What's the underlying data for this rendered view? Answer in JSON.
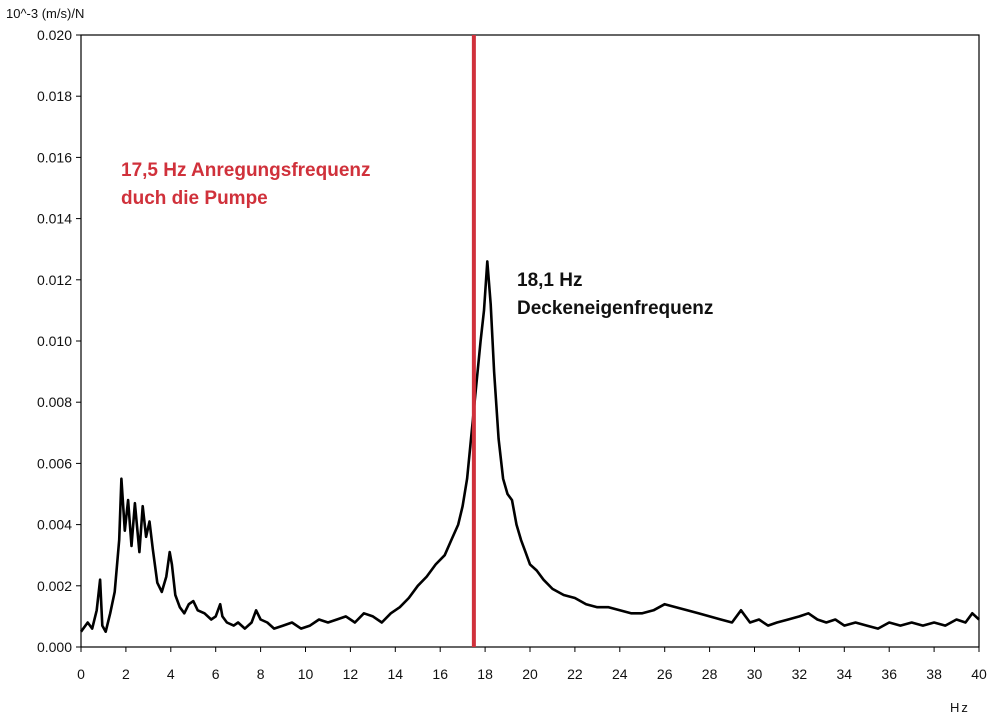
{
  "chart_data": {
    "type": "line",
    "xlabel": "Hz",
    "ylabel": "10^-3 (m/s)/N",
    "xlim": [
      0,
      40
    ],
    "ylim": [
      0,
      0.02
    ],
    "x_ticks": [
      "0",
      "2",
      "4",
      "6",
      "8",
      "10",
      "12",
      "14",
      "16",
      "18",
      "20",
      "22",
      "24",
      "26",
      "28",
      "30",
      "32",
      "34",
      "36",
      "38",
      "40"
    ],
    "y_ticks": [
      "0.000",
      "0.002",
      "0.004",
      "0.006",
      "0.008",
      "0.010",
      "0.012",
      "0.014",
      "0.016",
      "0.018",
      "0.020"
    ],
    "grid": false,
    "series": [
      {
        "color": "#000000",
        "x": [
          0,
          0.3,
          0.5,
          0.7,
          0.85,
          0.95,
          1.1,
          1.3,
          1.5,
          1.7,
          1.8,
          1.95,
          2.1,
          2.25,
          2.4,
          2.6,
          2.75,
          2.9,
          3.05,
          3.2,
          3.4,
          3.6,
          3.8,
          3.95,
          4.05,
          4.2,
          4.4,
          4.6,
          4.8,
          5.0,
          5.2,
          5.5,
          5.8,
          6.0,
          6.2,
          6.3,
          6.5,
          6.8,
          7.0,
          7.3,
          7.6,
          7.8,
          8.0,
          8.3,
          8.6,
          9.0,
          9.4,
          9.8,
          10.2,
          10.6,
          11.0,
          11.4,
          11.8,
          12.2,
          12.6,
          13.0,
          13.4,
          13.8,
          14.2,
          14.6,
          15.0,
          15.4,
          15.8,
          16.2,
          16.5,
          16.8,
          17.0,
          17.2,
          17.4,
          17.6,
          17.8,
          17.95,
          18.1,
          18.25,
          18.4,
          18.6,
          18.8,
          19.0,
          19.2,
          19.4,
          19.6,
          19.8,
          20.0,
          20.3,
          20.6,
          21.0,
          21.5,
          22.0,
          22.5,
          23.0,
          23.5,
          24.0,
          24.5,
          25.0,
          25.5,
          26.0,
          26.5,
          27.0,
          27.5,
          28.0,
          28.5,
          29.0,
          29.4,
          29.8,
          30.2,
          30.6,
          31.0,
          31.5,
          32.0,
          32.4,
          32.8,
          33.2,
          33.6,
          34.0,
          34.5,
          35.0,
          35.5,
          36.0,
          36.5,
          37.0,
          37.5,
          38.0,
          38.5,
          39.0,
          39.4,
          39.7,
          40.0
        ],
        "y": [
          0.0005,
          0.0008,
          0.0006,
          0.0012,
          0.0022,
          0.0007,
          0.0005,
          0.0011,
          0.0018,
          0.0035,
          0.0055,
          0.0038,
          0.0048,
          0.0033,
          0.0047,
          0.0031,
          0.0046,
          0.0036,
          0.0041,
          0.0032,
          0.0021,
          0.0018,
          0.0023,
          0.0031,
          0.0027,
          0.0017,
          0.0013,
          0.0011,
          0.0014,
          0.0015,
          0.0012,
          0.0011,
          0.0009,
          0.001,
          0.0014,
          0.001,
          0.0008,
          0.0007,
          0.0008,
          0.0006,
          0.0008,
          0.0012,
          0.0009,
          0.0008,
          0.0006,
          0.0007,
          0.0008,
          0.0006,
          0.0007,
          0.0009,
          0.0008,
          0.0009,
          0.001,
          0.0008,
          0.0011,
          0.001,
          0.0008,
          0.0011,
          0.0013,
          0.0016,
          0.002,
          0.0023,
          0.0027,
          0.003,
          0.0035,
          0.004,
          0.0046,
          0.0055,
          0.007,
          0.0085,
          0.01,
          0.011,
          0.0126,
          0.0112,
          0.009,
          0.0068,
          0.0055,
          0.005,
          0.0048,
          0.004,
          0.0035,
          0.0031,
          0.0027,
          0.0025,
          0.0022,
          0.0019,
          0.0017,
          0.0016,
          0.0014,
          0.0013,
          0.0013,
          0.0012,
          0.0011,
          0.0011,
          0.0012,
          0.0014,
          0.0013,
          0.0012,
          0.0011,
          0.001,
          0.0009,
          0.0008,
          0.0012,
          0.0008,
          0.0009,
          0.0007,
          0.0008,
          0.0009,
          0.001,
          0.0011,
          0.0009,
          0.0008,
          0.0009,
          0.0007,
          0.0008,
          0.0007,
          0.0006,
          0.0008,
          0.0007,
          0.0008,
          0.0007,
          0.0008,
          0.0007,
          0.0009,
          0.0008,
          0.0011,
          0.0009
        ]
      }
    ],
    "reference_line": {
      "x": 17.5,
      "color": "#d0313b"
    },
    "annotations": [
      {
        "lines": [
          "17,5 Hz Anregungsfrequenz",
          "duch die Pumpe"
        ],
        "color": "#d0313b"
      },
      {
        "lines": [
          "18,1 Hz",
          "Deckeneigenfrequenz"
        ],
        "color": "#111111"
      }
    ]
  }
}
